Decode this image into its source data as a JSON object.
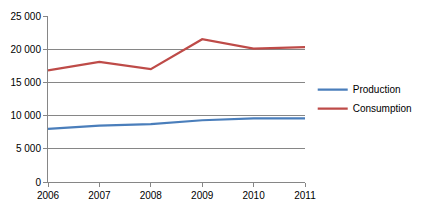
{
  "chart_data": {
    "type": "line",
    "categories": [
      "2006",
      "2007",
      "2008",
      "2009",
      "2010",
      "2011"
    ],
    "series": [
      {
        "name": "Production",
        "color": "#4a7ebb",
        "values": [
          8000,
          8500,
          8700,
          9300,
          9600,
          9600
        ]
      },
      {
        "name": "Consumption",
        "color": "#be4b48",
        "values": [
          16800,
          18100,
          17000,
          21500,
          20100,
          20300
        ]
      }
    ],
    "ylim": [
      0,
      25000
    ],
    "yticks": [
      0,
      {
        "value": 5000,
        "label": "5 000"
      },
      {
        "value": 10000,
        "label": "10 000"
      },
      {
        "value": 15000,
        "label": "15 000"
      },
      {
        "value": 20000,
        "label": "20 000"
      },
      {
        "value": 25000,
        "label": "25 000"
      }
    ],
    "grid": true,
    "legend": "right"
  }
}
